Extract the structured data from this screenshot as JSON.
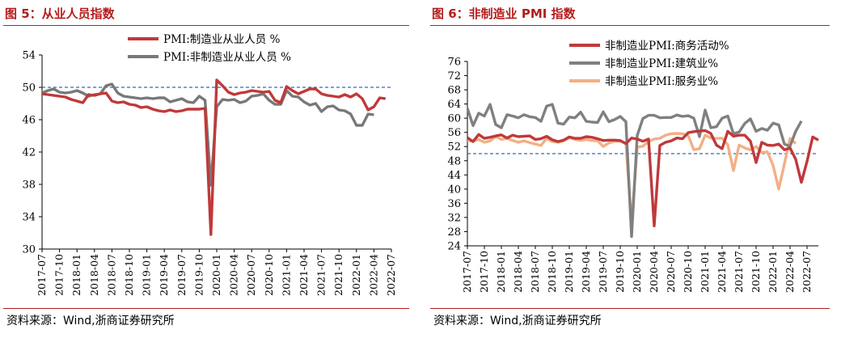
{
  "panels": [
    {
      "title": "图 5：从业人员指数",
      "source": "资料来源：Wind,浙商证券研究所"
    },
    {
      "title": "图 6：非制造业 PMI 指数",
      "source": "资料来源：Wind,浙商证券研究所"
    }
  ],
  "chart_data": [
    {
      "type": "line",
      "title": "",
      "xlabel": "",
      "ylabel": "",
      "ylim": [
        30,
        54
      ],
      "yticks": [
        30,
        34,
        38,
        42,
        46,
        50,
        54
      ],
      "xtick_labels": [
        "2017-07",
        "2017-10",
        "2018-01",
        "2018-04",
        "2018-07",
        "2018-10",
        "2019-01",
        "2019-04",
        "2019-07",
        "2019-10",
        "2020-01",
        "2020-04",
        "2020-07",
        "2020-10",
        "2021-01",
        "2021-04",
        "2021-07",
        "2021-10",
        "2022-01",
        "2022-04",
        "2022-07"
      ],
      "x_start": "2017-07",
      "reference_line": 50,
      "legend_position": "top-center",
      "grid": false,
      "series": [
        {
          "name": "PMI:制造业从业人员 %",
          "color": "#c0393a",
          "values": [
            49.2,
            49.1,
            49.0,
            48.9,
            48.8,
            48.5,
            48.3,
            48.1,
            49.1,
            49.0,
            49.2,
            49.3,
            48.3,
            48.1,
            48.2,
            47.9,
            47.8,
            47.5,
            47.6,
            47.3,
            47.1,
            47.0,
            47.2,
            47.0,
            47.1,
            47.3,
            47.3,
            47.3,
            47.4,
            31.8,
            50.9,
            50.2,
            49.4,
            49.1,
            49.3,
            49.4,
            49.6,
            49.5,
            49.4,
            49.5,
            48.4,
            48.1,
            50.1,
            49.6,
            49.2,
            49.5,
            49.8,
            49.8,
            49.2,
            49.0,
            48.9,
            48.8,
            49.1,
            48.8,
            49.2,
            48.6,
            47.2,
            47.6,
            48.7,
            48.6
          ]
        },
        {
          "name": "PMI:非制造业从业人员 %",
          "color": "#787878",
          "values": [
            49.3,
            49.6,
            49.8,
            49.4,
            49.3,
            49.4,
            49.6,
            49.3,
            48.9,
            49.1,
            49.2,
            50.2,
            50.4,
            49.3,
            48.9,
            48.8,
            48.7,
            48.6,
            48.7,
            48.6,
            48.7,
            48.7,
            48.2,
            48.4,
            48.6,
            48.2,
            48.1,
            48.9,
            48.4,
            37.9,
            47.6,
            48.5,
            48.4,
            48.5,
            48.1,
            48.3,
            48.9,
            49.0,
            49.2,
            48.4,
            47.9,
            47.9,
            49.6,
            48.9,
            48.8,
            48.2,
            47.8,
            48.0,
            47.0,
            47.6,
            47.7,
            47.2,
            47.1,
            46.7,
            45.3,
            45.3,
            46.7,
            46.6
          ]
        }
      ]
    },
    {
      "type": "line",
      "title": "",
      "xlabel": "",
      "ylabel": "",
      "ylim": [
        24,
        76
      ],
      "yticks": [
        24,
        28,
        32,
        36,
        40,
        44,
        48,
        52,
        56,
        60,
        64,
        68,
        72,
        76
      ],
      "xtick_labels": [
        "2017-07",
        "2017-10",
        "2018-01",
        "2018-04",
        "2018-07",
        "2018-10",
        "2019-01",
        "2019-04",
        "2019-07",
        "2019-10",
        "2020-01",
        "2020-04",
        "2020-07",
        "2020-10",
        "2021-01",
        "2021-04",
        "2021-07",
        "2021-10",
        "2022-01",
        "2022-04",
        "2022-07"
      ],
      "x_start": "2017-07",
      "reference_line": 50,
      "legend_position": "top-center",
      "grid": false,
      "series": [
        {
          "name": "非制造业PMI:商务活动%",
          "color": "#c0393a",
          "values": [
            54.5,
            53.4,
            55.4,
            54.3,
            54.6,
            55.0,
            55.3,
            54.4,
            55.2,
            54.8,
            54.9,
            55.0,
            54.0,
            54.2,
            54.9,
            53.9,
            53.4,
            53.8,
            54.7,
            54.3,
            54.3,
            54.8,
            54.6,
            54.2,
            53.7,
            53.8,
            53.8,
            53.7,
            52.8,
            54.4,
            54.1,
            53.5,
            54.1,
            29.6,
            52.3,
            53.2,
            53.6,
            54.4,
            54.2,
            55.9,
            56.2,
            56.4,
            56.5,
            55.7,
            52.4,
            51.4,
            56.3,
            54.9,
            55.2,
            55.2,
            53.5,
            47.5,
            53.2,
            52.4,
            52.3,
            52.7,
            51.1,
            51.6,
            48.4,
            41.9,
            47.8,
            54.7,
            53.8
          ]
        },
        {
          "name": "非制造业PMI:建筑业%",
          "color": "#808080",
          "values": [
            62.8,
            57.9,
            61.4,
            60.6,
            63.9,
            58.2,
            57.3,
            61.0,
            60.6,
            60.1,
            61.0,
            60.4,
            60.2,
            59.1,
            63.4,
            63.9,
            58.6,
            58.3,
            60.3,
            60.1,
            61.7,
            59.1,
            58.9,
            58.8,
            61.8,
            59.0,
            59.6,
            60.5,
            59.0,
            26.6,
            55.1,
            59.9,
            60.8,
            60.8,
            60.1,
            60.2,
            60.2,
            60.9,
            60.5,
            60.7,
            60.0,
            54.8,
            62.3,
            57.3,
            57.6,
            60.0,
            60.6,
            55.6,
            56.1,
            58.5,
            59.8,
            56.3,
            57.1,
            56.6,
            58.6,
            58.1,
            52.7,
            52.1,
            56.3,
            59.2
          ]
        },
        {
          "name": "非制造业PMI:服务业%",
          "color": "#f2b084",
          "values": [
            53.7,
            53.5,
            54.0,
            53.2,
            53.6,
            54.8,
            54.0,
            54.3,
            53.7,
            53.2,
            53.6,
            53.1,
            52.7,
            52.3,
            54.3,
            53.4,
            53.2,
            53.6,
            54.5,
            54.0,
            53.7,
            54.0,
            53.7,
            53.6,
            52.0,
            53.0,
            53.5,
            53.5,
            53.0,
            30.1,
            51.8,
            52.1,
            53.4,
            54.1,
            54.3,
            55.2,
            55.6,
            55.7,
            55.6,
            55.1,
            51.1,
            51.4,
            55.2,
            54.4,
            54.3,
            54.3,
            52.5,
            45.2,
            52.4,
            51.6,
            51.1,
            52.0,
            50.3,
            50.5,
            46.7,
            40.0,
            47.1,
            54.3,
            52.8
          ]
        }
      ]
    }
  ]
}
